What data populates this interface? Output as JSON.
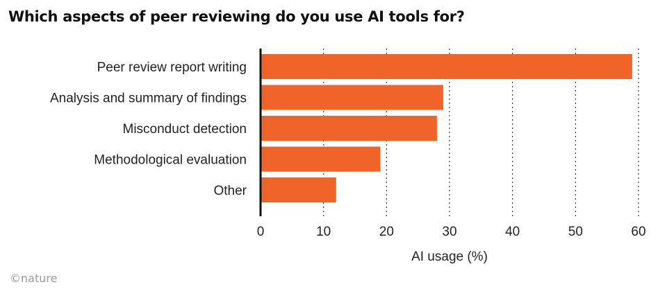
{
  "source": "©nature",
  "chart_data": {
    "type": "bar",
    "orientation": "horizontal",
    "title": "Which aspects of peer reviewing do you use AI tools for?",
    "xlabel": "AI usage (%)",
    "ylabel": "",
    "categories": [
      "Peer review report writing",
      "Analysis and summary of findings",
      "Misconduct detection",
      "Methodological evaluation",
      "Other"
    ],
    "values": [
      59,
      29,
      28,
      19,
      12
    ],
    "xlim": [
      0,
      60
    ],
    "xticks": [
      0,
      10,
      20,
      30,
      40,
      50,
      60
    ],
    "grid": "vertical dotted",
    "bar_color": "#f0642a"
  }
}
